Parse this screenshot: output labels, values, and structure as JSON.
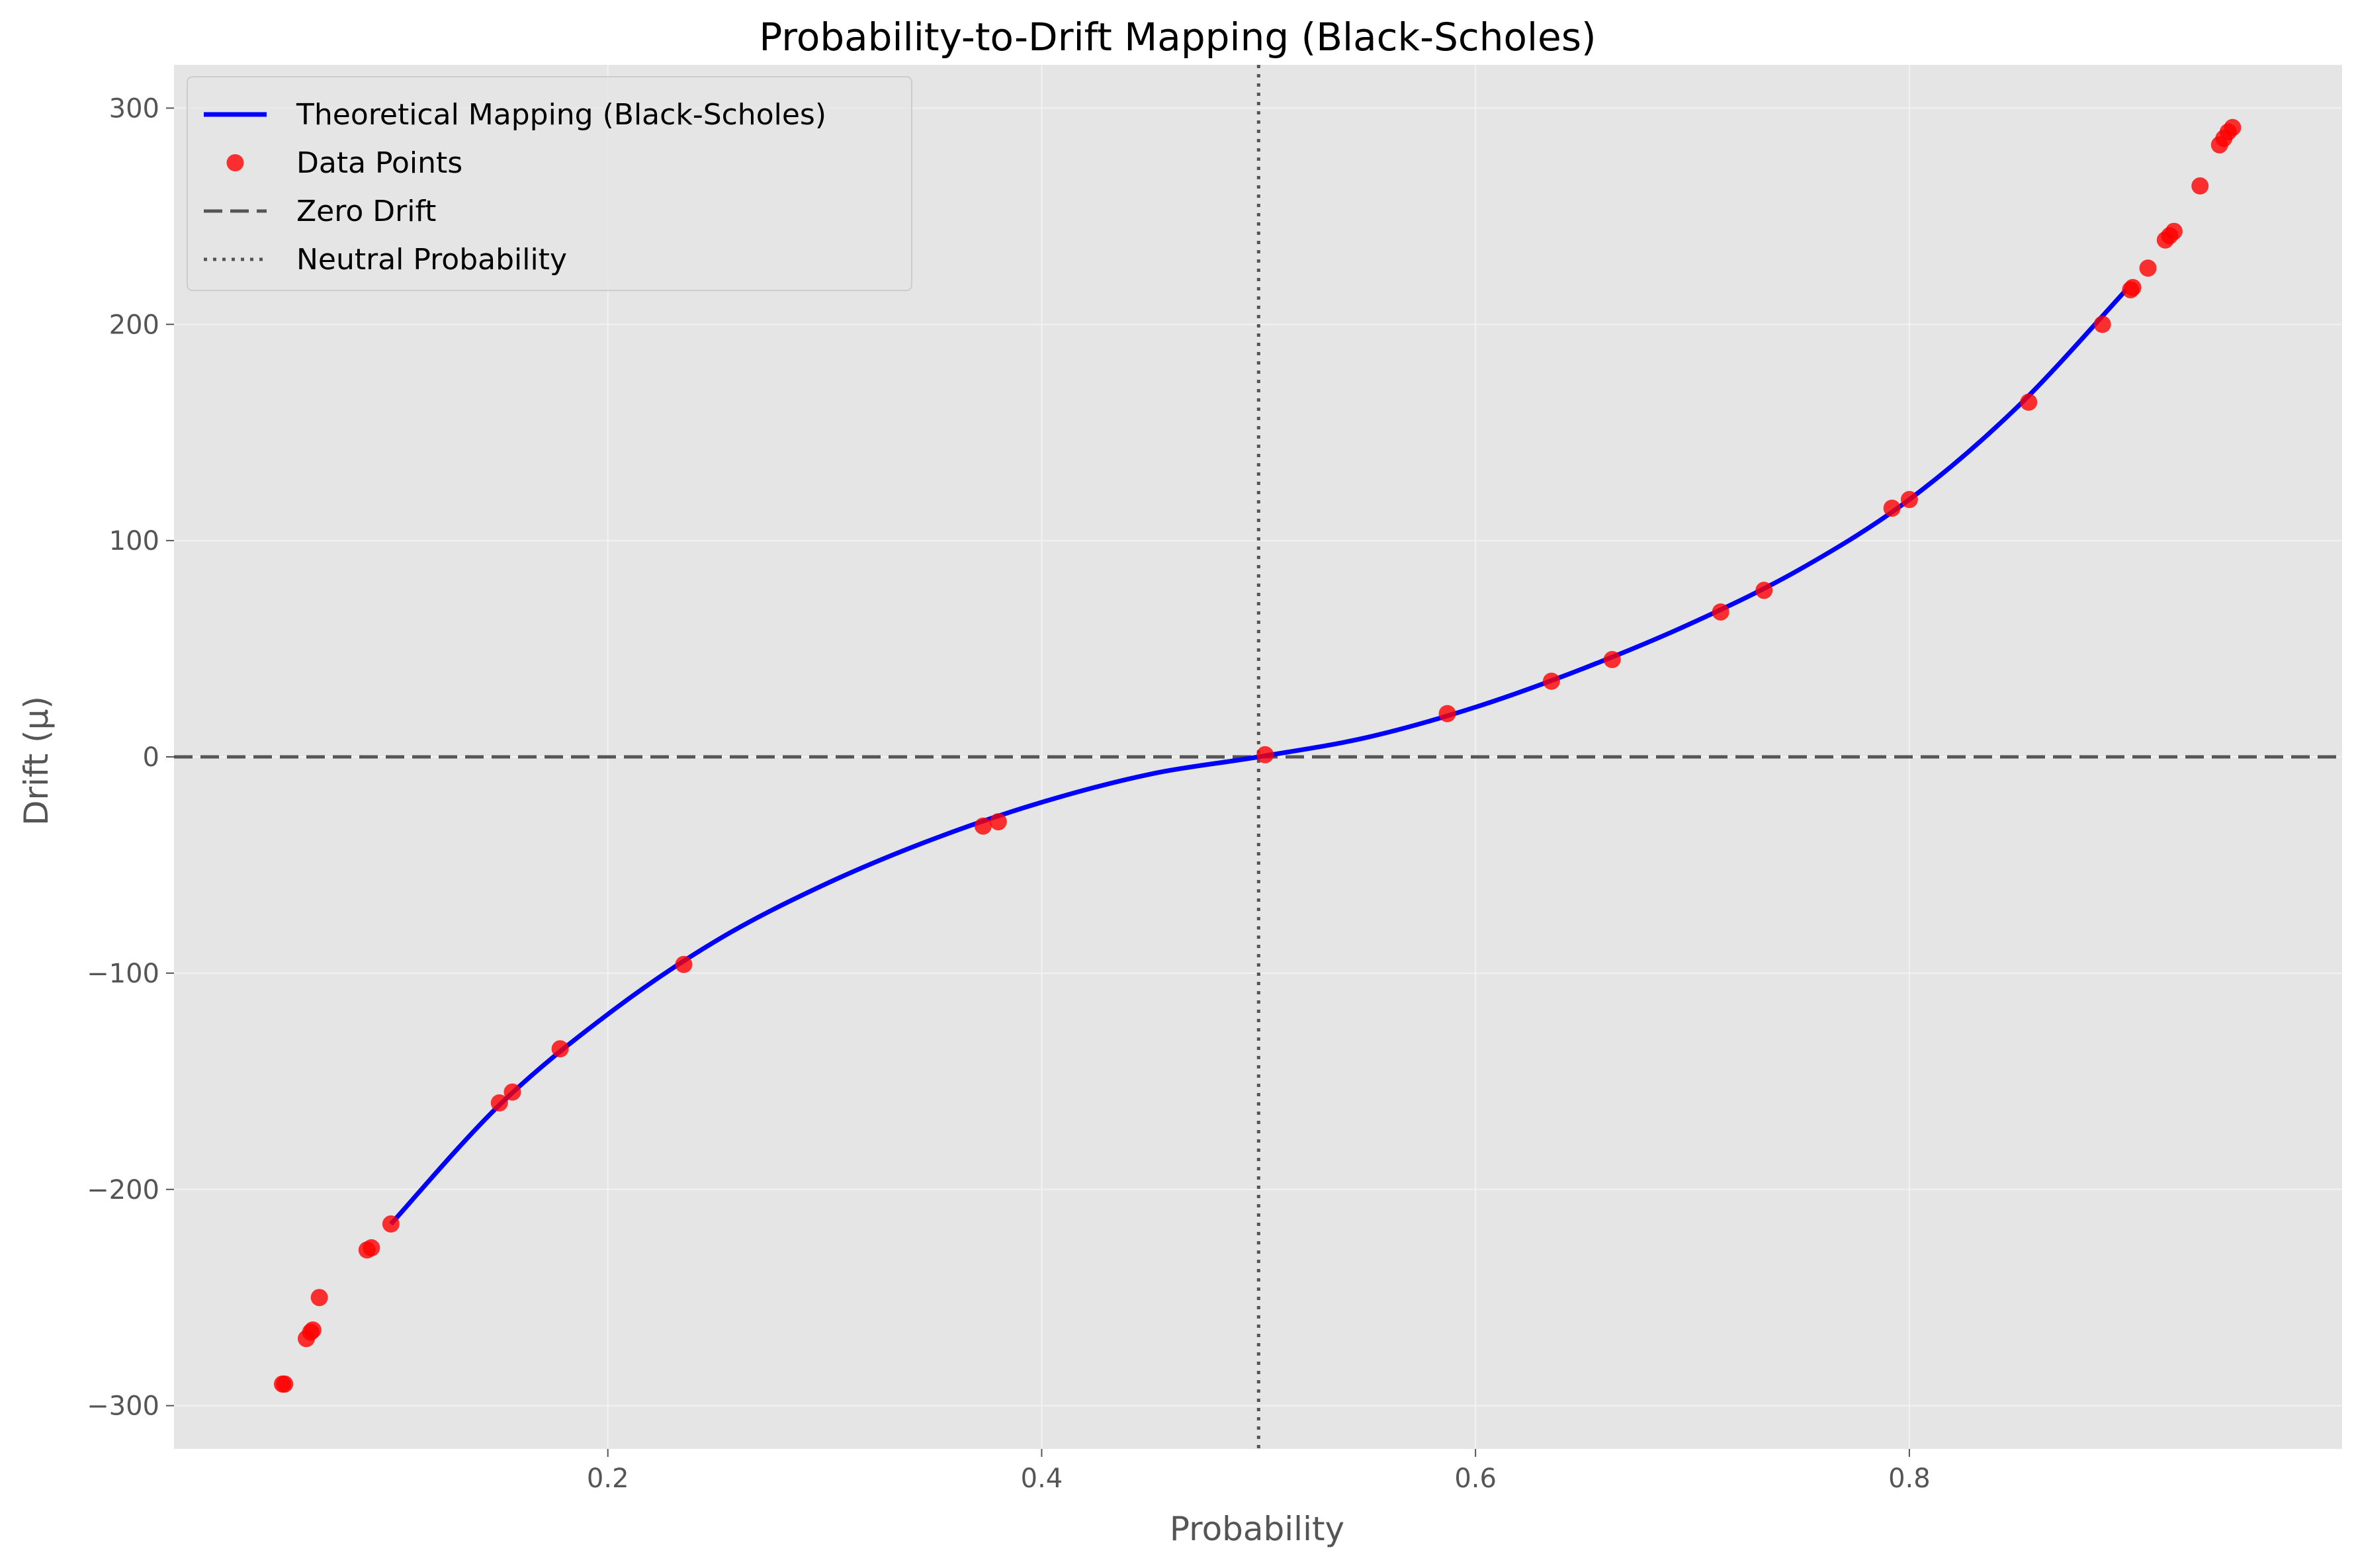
{
  "chart_data": {
    "type": "scatter",
    "title": "Probability-to-Drift Mapping (Black-Scholes)",
    "xlabel": "Probability",
    "ylabel": "Drift (μ)",
    "xlim": [
      0.0,
      0.9995
    ],
    "ylim": [
      -320,
      320
    ],
    "xticks": [
      0.2,
      0.4,
      0.6,
      0.8
    ],
    "xtick_labels": [
      "0.2",
      "0.4",
      "0.6",
      "0.8"
    ],
    "yticks": [
      -300,
      -200,
      -100,
      0,
      100,
      200,
      300
    ],
    "ytick_labels": [
      "−300",
      "−200",
      "−100",
      "0",
      "100",
      "200",
      "300"
    ],
    "grid": true,
    "legend_position": "top-left",
    "legend": [
      {
        "label": "Theoretical Mapping (Black-Scholes)",
        "style": "line",
        "color": "#0000ff"
      },
      {
        "label": "Data Points",
        "style": "marker",
        "color": "#ff0000"
      },
      {
        "label": "Zero Drift",
        "style": "dashed",
        "color": "#555555"
      },
      {
        "label": "Neutral Probability",
        "style": "dotted",
        "color": "#555555"
      }
    ],
    "series": [
      {
        "name": "Theoretical Mapping (Black-Scholes)",
        "kind": "line",
        "color": "#0000ff",
        "x": [
          0.1,
          0.15,
          0.2,
          0.25,
          0.3,
          0.35,
          0.4,
          0.45,
          0.5,
          0.55,
          0.6,
          0.65,
          0.7,
          0.75,
          0.8,
          0.85,
          0.9
        ],
        "y": [
          -216,
          -161,
          -119,
          -85,
          -59,
          -38,
          -21,
          -8,
          0,
          9,
          23,
          41,
          62,
          87,
          119,
          162,
          216
        ]
      },
      {
        "name": "Data Points",
        "kind": "scatter",
        "color": "#ff0000",
        "x": [
          0.05,
          0.051,
          0.061,
          0.063,
          0.064,
          0.067,
          0.089,
          0.091,
          0.1,
          0.15,
          0.156,
          0.178,
          0.235,
          0.373,
          0.38,
          0.503,
          0.587,
          0.635,
          0.663,
          0.713,
          0.733,
          0.792,
          0.8,
          0.855,
          0.889,
          0.902,
          0.903,
          0.91,
          0.918,
          0.92,
          0.922,
          0.934,
          0.943,
          0.945,
          0.947,
          0.949
        ],
        "y": [
          -290,
          -290,
          -269,
          -266,
          -265,
          -250,
          -228,
          -227,
          -216,
          -160,
          -155,
          -135,
          -96,
          -32,
          -30,
          1,
          20,
          35,
          45,
          67,
          77,
          115,
          119,
          164,
          200,
          216,
          217,
          226,
          239,
          241,
          243,
          264,
          283,
          286,
          289,
          291
        ]
      },
      {
        "name": "Zero Drift",
        "kind": "hline",
        "color": "#555555",
        "y": 0
      },
      {
        "name": "Neutral Probability",
        "kind": "vline",
        "color": "#555555",
        "x": 0.5
      }
    ]
  }
}
